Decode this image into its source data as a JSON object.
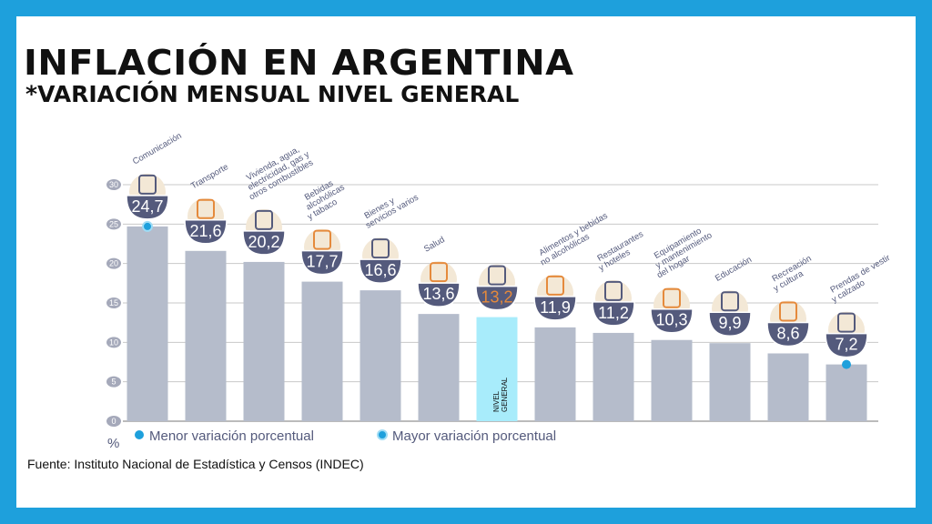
{
  "title": "INFLACIÓN EN ARGENTINA",
  "subtitle": "*VARIACIÓN MENSUAL NIVEL GENERAL",
  "source": "Fuente: Instituto Nacional de Estadística y Censos (INDEC)",
  "colors": {
    "border": "#1ea0dc",
    "bar": "#b5bccb",
    "highlight_bar": "#a8ecfb",
    "badge": "#545a7c",
    "highlight_value": "#e58a3c",
    "dot": "#1ea0dc",
    "icon_bg": "#f3e8d6"
  },
  "chart_data": {
    "type": "bar",
    "ylabel": "%",
    "ylim": [
      0,
      30
    ],
    "yticks": [
      "0",
      "5",
      "10",
      "15",
      "20",
      "25",
      "30"
    ],
    "grid": true,
    "legend_placement": "bottom",
    "categories": [
      [
        "Comunicación"
      ],
      [
        "Transporte"
      ],
      [
        "Vivienda, agua,",
        "electricidad, gas y",
        "otros combustibles"
      ],
      [
        "Bebidas",
        "alcohólicas",
        "y tabaco"
      ],
      [
        "Bienes y",
        "servicios varios"
      ],
      [
        "Salud"
      ],
      [],
      [
        "Alimentos y bebidas",
        "no alcohólicas"
      ],
      [
        "Restaurantes",
        "y hoteles"
      ],
      [
        "Equipamiento",
        "y mantenimiento",
        "del hogar"
      ],
      [
        "Educación"
      ],
      [
        "Recreación",
        "y cultura"
      ],
      [
        "Prendas de vestir",
        "y calzado"
      ]
    ],
    "values": [
      24.7,
      21.6,
      20.2,
      17.7,
      16.6,
      13.6,
      13.2,
      11.9,
      11.2,
      10.3,
      9.9,
      8.6,
      7.2
    ],
    "value_labels": [
      "24,7",
      "21,6",
      "20,2",
      "17,7",
      "16,6",
      "13,6",
      "13,2",
      "11,9",
      "11,2",
      "10,3",
      "9,9",
      "8,6",
      "7,2"
    ],
    "icons": [
      "smartphone-icon",
      "sube-card-bus-icon",
      "lightbulb-tools-icon",
      "wine-bottle-icon",
      "comb-scissors-icon",
      "medical-cross-icon",
      "grocery-bag-icon",
      "food-chicken-icon",
      "plate-cutlery-icon",
      "washing-machine-icon",
      "notebook-pencil-icon",
      "beach-umbrella-icon",
      "tshirt-sandal-icon"
    ],
    "highlight_index": 6,
    "highlight_label": [
      "NIVEL",
      "GENERAL"
    ],
    "legend": [
      {
        "label": "Menor variación porcentual",
        "marks_index": 12
      },
      {
        "label": "Mayor variación porcentual",
        "marks_index": 0
      }
    ]
  }
}
